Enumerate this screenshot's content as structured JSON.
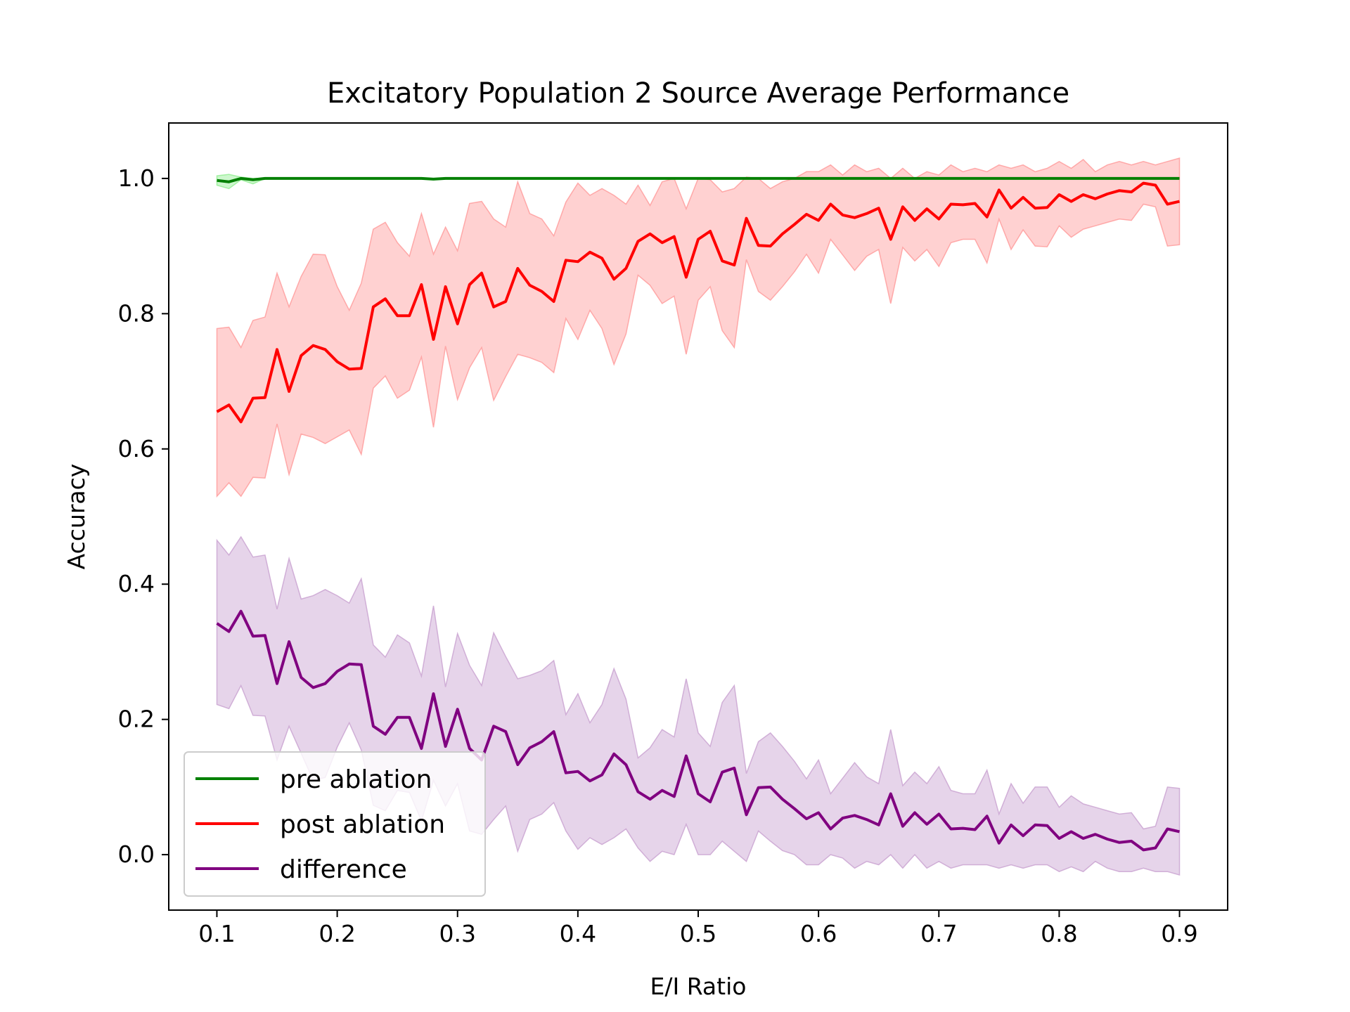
{
  "chart_data": {
    "type": "line",
    "title": "Excitatory Population 2 Source Average Performance",
    "xlabel": "E/I Ratio",
    "ylabel": "Accuracy",
    "xlim": [
      0.06,
      0.94
    ],
    "ylim": [
      -0.082,
      1.082
    ],
    "xticks": [
      0.1,
      0.2,
      0.3,
      0.4,
      0.5,
      0.6,
      0.7,
      0.8,
      0.9
    ],
    "xtick_labels": [
      "0.1",
      "0.2",
      "0.3",
      "0.4",
      "0.5",
      "0.6",
      "0.7",
      "0.8",
      "0.9"
    ],
    "yticks": [
      0.0,
      0.2,
      0.4,
      0.6,
      0.8,
      1.0
    ],
    "ytick_labels": [
      "0.0",
      "0.2",
      "0.4",
      "0.6",
      "0.8",
      "1.0"
    ],
    "grid": false,
    "legend": "lower-left",
    "x": [
      0.1,
      0.11,
      0.12,
      0.13,
      0.14,
      0.15,
      0.16,
      0.17,
      0.18,
      0.19,
      0.2,
      0.21,
      0.22,
      0.23,
      0.24,
      0.25,
      0.26,
      0.27,
      0.28,
      0.29,
      0.3,
      0.31,
      0.32,
      0.33,
      0.34,
      0.35,
      0.36,
      0.37,
      0.38,
      0.39,
      0.4,
      0.41,
      0.42,
      0.43,
      0.44,
      0.45,
      0.46,
      0.47,
      0.48,
      0.49,
      0.5,
      0.51,
      0.52,
      0.53,
      0.54,
      0.55,
      0.56,
      0.57,
      0.58,
      0.59,
      0.6,
      0.61,
      0.62,
      0.63,
      0.64,
      0.65,
      0.66,
      0.67,
      0.68,
      0.69,
      0.7,
      0.71,
      0.72,
      0.73,
      0.74,
      0.75,
      0.76,
      0.77,
      0.78,
      0.79,
      0.8,
      0.81,
      0.82,
      0.83,
      0.84,
      0.85,
      0.86,
      0.87,
      0.88,
      0.89,
      0.9
    ],
    "series": [
      {
        "name": "pre ablation",
        "color": "#008000",
        "band_color": "#90ee90",
        "values": [
          0.997,
          0.995,
          1.0,
          0.998,
          1.0,
          1.0,
          1.0,
          1.0,
          1.0,
          1.0,
          1.0,
          1.0,
          1.0,
          1.0,
          1.0,
          1.0,
          1.0,
          1.0,
          0.999,
          1.0,
          1.0,
          1.0,
          1.0,
          1.0,
          1.0,
          1.0,
          1.0,
          1.0,
          1.0,
          1.0,
          1.0,
          1.0,
          1.0,
          1.0,
          1.0,
          1.0,
          1.0,
          1.0,
          1.0,
          1.0,
          1.0,
          1.0,
          1.0,
          1.0,
          1.0,
          1.0,
          1.0,
          1.0,
          1.0,
          1.0,
          1.0,
          1.0,
          1.0,
          1.0,
          1.0,
          1.0,
          1.0,
          1.0,
          1.0,
          1.0,
          1.0,
          1.0,
          1.0,
          1.0,
          1.0,
          1.0,
          1.0,
          1.0,
          1.0,
          1.0,
          1.0,
          1.0,
          1.0,
          1.0,
          1.0,
          1.0,
          1.0,
          1.0,
          1.0,
          1.0,
          1.0
        ],
        "upper": [
          1.004,
          1.006,
          1.002,
          1.0,
          1.0,
          1.0,
          1.0,
          1.0,
          1.0,
          1.0,
          1.0,
          1.0,
          1.0,
          1.0,
          1.0,
          1.0,
          1.0,
          1.0,
          1.0,
          1.0,
          1.0,
          1.0,
          1.0,
          1.0,
          1.0,
          1.0,
          1.0,
          1.0,
          1.0,
          1.0,
          1.0,
          1.0,
          1.0,
          1.0,
          1.0,
          1.0,
          1.0,
          1.0,
          1.0,
          1.0,
          1.0,
          1.0,
          1.0,
          1.0,
          1.0,
          1.0,
          1.0,
          1.0,
          1.0,
          1.0,
          1.0,
          1.0,
          1.0,
          1.0,
          1.0,
          1.0,
          1.0,
          1.0,
          1.0,
          1.0,
          1.0,
          1.0,
          1.0,
          1.0,
          1.0,
          1.0,
          1.0,
          1.0,
          1.0,
          1.0,
          1.0,
          1.0,
          1.0,
          1.0,
          1.0,
          1.0,
          1.0,
          1.0,
          1.0,
          1.0,
          1.0
        ],
        "lower": [
          0.99,
          0.985,
          0.998,
          0.992,
          1.0,
          1.0,
          1.0,
          1.0,
          1.0,
          1.0,
          1.0,
          1.0,
          1.0,
          1.0,
          1.0,
          1.0,
          1.0,
          1.0,
          0.998,
          1.0,
          1.0,
          1.0,
          1.0,
          1.0,
          1.0,
          1.0,
          1.0,
          1.0,
          1.0,
          1.0,
          1.0,
          1.0,
          1.0,
          1.0,
          1.0,
          1.0,
          1.0,
          1.0,
          1.0,
          1.0,
          1.0,
          1.0,
          1.0,
          1.0,
          1.0,
          1.0,
          1.0,
          1.0,
          1.0,
          1.0,
          1.0,
          1.0,
          1.0,
          1.0,
          1.0,
          1.0,
          1.0,
          1.0,
          1.0,
          1.0,
          1.0,
          1.0,
          1.0,
          1.0,
          1.0,
          1.0,
          1.0,
          1.0,
          1.0,
          1.0,
          1.0,
          1.0,
          1.0,
          1.0,
          1.0,
          1.0,
          1.0,
          1.0,
          1.0,
          1.0,
          1.0
        ]
      },
      {
        "name": "post ablation",
        "color": "#ff0000",
        "band_color": "#ff9999",
        "values": [
          0.655,
          0.665,
          0.64,
          0.675,
          0.676,
          0.747,
          0.685,
          0.738,
          0.753,
          0.747,
          0.729,
          0.718,
          0.719,
          0.81,
          0.822,
          0.797,
          0.797,
          0.843,
          0.762,
          0.84,
          0.785,
          0.843,
          0.86,
          0.81,
          0.818,
          0.867,
          0.842,
          0.833,
          0.818,
          0.879,
          0.877,
          0.891,
          0.882,
          0.851,
          0.867,
          0.907,
          0.918,
          0.905,
          0.914,
          0.854,
          0.91,
          0.922,
          0.878,
          0.872,
          0.941,
          0.901,
          0.9,
          0.918,
          0.932,
          0.947,
          0.938,
          0.962,
          0.946,
          0.942,
          0.948,
          0.956,
          0.91,
          0.958,
          0.938,
          0.955,
          0.94,
          0.962,
          0.961,
          0.963,
          0.943,
          0.983,
          0.956,
          0.972,
          0.956,
          0.957,
          0.976,
          0.966,
          0.976,
          0.97,
          0.977,
          0.982,
          0.98,
          0.993,
          0.99,
          0.962,
          0.966
        ],
        "upper": [
          0.778,
          0.78,
          0.75,
          0.79,
          0.795,
          0.86,
          0.81,
          0.855,
          0.888,
          0.887,
          0.84,
          0.805,
          0.845,
          0.925,
          0.935,
          0.905,
          0.885,
          0.948,
          0.888,
          0.928,
          0.893,
          0.963,
          0.966,
          0.94,
          0.928,
          0.995,
          0.948,
          0.94,
          0.915,
          0.965,
          0.993,
          0.975,
          0.985,
          0.975,
          0.962,
          0.99,
          0.96,
          0.995,
          1.0,
          0.955,
          1.0,
          0.998,
          0.98,
          0.985,
          1.002,
          1.0,
          0.985,
          0.995,
          1.0,
          1.01,
          1.01,
          1.02,
          1.005,
          1.02,
          1.01,
          1.015,
          1.0,
          1.015,
          1.0,
          1.01,
          1.005,
          1.02,
          1.01,
          1.015,
          1.01,
          1.02,
          1.015,
          1.02,
          1.01,
          1.015,
          1.025,
          1.015,
          1.028,
          1.01,
          1.02,
          1.025,
          1.02,
          1.025,
          1.02,
          1.025,
          1.03
        ],
        "lower": [
          0.53,
          0.55,
          0.53,
          0.558,
          0.557,
          0.637,
          0.562,
          0.622,
          0.617,
          0.608,
          0.618,
          0.628,
          0.592,
          0.69,
          0.708,
          0.675,
          0.687,
          0.736,
          0.632,
          0.752,
          0.673,
          0.72,
          0.75,
          0.672,
          0.707,
          0.74,
          0.735,
          0.728,
          0.713,
          0.793,
          0.762,
          0.805,
          0.778,
          0.725,
          0.77,
          0.857,
          0.842,
          0.815,
          0.826,
          0.74,
          0.82,
          0.84,
          0.775,
          0.75,
          0.88,
          0.833,
          0.82,
          0.84,
          0.862,
          0.888,
          0.86,
          0.91,
          0.887,
          0.864,
          0.885,
          0.895,
          0.815,
          0.898,
          0.878,
          0.895,
          0.87,
          0.905,
          0.91,
          0.91,
          0.875,
          0.94,
          0.895,
          0.924,
          0.9,
          0.899,
          0.93,
          0.913,
          0.925,
          0.93,
          0.935,
          0.94,
          0.938,
          0.962,
          0.958,
          0.9,
          0.902
        ]
      },
      {
        "name": "difference",
        "color": "#800080",
        "band_color": "#c8a0d0",
        "values": [
          0.342,
          0.33,
          0.36,
          0.323,
          0.324,
          0.253,
          0.315,
          0.262,
          0.247,
          0.253,
          0.271,
          0.282,
          0.281,
          0.19,
          0.178,
          0.203,
          0.203,
          0.157,
          0.238,
          0.16,
          0.215,
          0.157,
          0.14,
          0.19,
          0.182,
          0.133,
          0.158,
          0.167,
          0.182,
          0.121,
          0.123,
          0.109,
          0.118,
          0.149,
          0.133,
          0.093,
          0.082,
          0.095,
          0.086,
          0.146,
          0.09,
          0.078,
          0.122,
          0.128,
          0.059,
          0.099,
          0.1,
          0.082,
          0.068,
          0.053,
          0.062,
          0.038,
          0.054,
          0.058,
          0.052,
          0.044,
          0.09,
          0.042,
          0.062,
          0.045,
          0.06,
          0.038,
          0.039,
          0.037,
          0.057,
          0.017,
          0.044,
          0.028,
          0.044,
          0.043,
          0.024,
          0.034,
          0.024,
          0.03,
          0.023,
          0.018,
          0.02,
          0.007,
          0.01,
          0.038,
          0.034
        ],
        "upper": [
          0.465,
          0.443,
          0.47,
          0.44,
          0.443,
          0.363,
          0.438,
          0.378,
          0.383,
          0.392,
          0.383,
          0.372,
          0.408,
          0.31,
          0.292,
          0.325,
          0.313,
          0.264,
          0.368,
          0.248,
          0.327,
          0.28,
          0.25,
          0.328,
          0.293,
          0.26,
          0.265,
          0.272,
          0.287,
          0.207,
          0.238,
          0.195,
          0.222,
          0.275,
          0.23,
          0.143,
          0.158,
          0.185,
          0.174,
          0.26,
          0.18,
          0.16,
          0.225,
          0.25,
          0.12,
          0.167,
          0.18,
          0.16,
          0.138,
          0.112,
          0.14,
          0.09,
          0.113,
          0.136,
          0.115,
          0.105,
          0.185,
          0.102,
          0.122,
          0.105,
          0.13,
          0.095,
          0.09,
          0.09,
          0.125,
          0.06,
          0.105,
          0.076,
          0.1,
          0.1,
          0.07,
          0.087,
          0.075,
          0.07,
          0.065,
          0.06,
          0.062,
          0.038,
          0.042,
          0.1,
          0.098
        ],
        "lower": [
          0.222,
          0.216,
          0.25,
          0.206,
          0.205,
          0.14,
          0.19,
          0.15,
          0.11,
          0.114,
          0.159,
          0.195,
          0.155,
          0.073,
          0.065,
          0.095,
          0.092,
          0.05,
          0.11,
          0.072,
          0.105,
          0.035,
          0.03,
          0.052,
          0.072,
          0.005,
          0.052,
          0.06,
          0.077,
          0.035,
          0.008,
          0.025,
          0.015,
          0.025,
          0.038,
          0.01,
          -0.01,
          0.005,
          0.0,
          0.045,
          0.0,
          0.0,
          0.02,
          0.005,
          -0.01,
          0.035,
          0.02,
          0.006,
          -0.0,
          -0.015,
          -0.015,
          -0.0,
          -0.005,
          -0.02,
          -0.01,
          -0.015,
          -0.0,
          -0.02,
          -0.0,
          -0.02,
          -0.01,
          -0.02,
          -0.015,
          -0.015,
          -0.015,
          -0.02,
          -0.015,
          -0.02,
          -0.015,
          -0.015,
          -0.025,
          -0.018,
          -0.025,
          -0.01,
          -0.02,
          -0.025,
          -0.025,
          -0.02,
          -0.025,
          -0.025,
          -0.03
        ]
      }
    ]
  }
}
